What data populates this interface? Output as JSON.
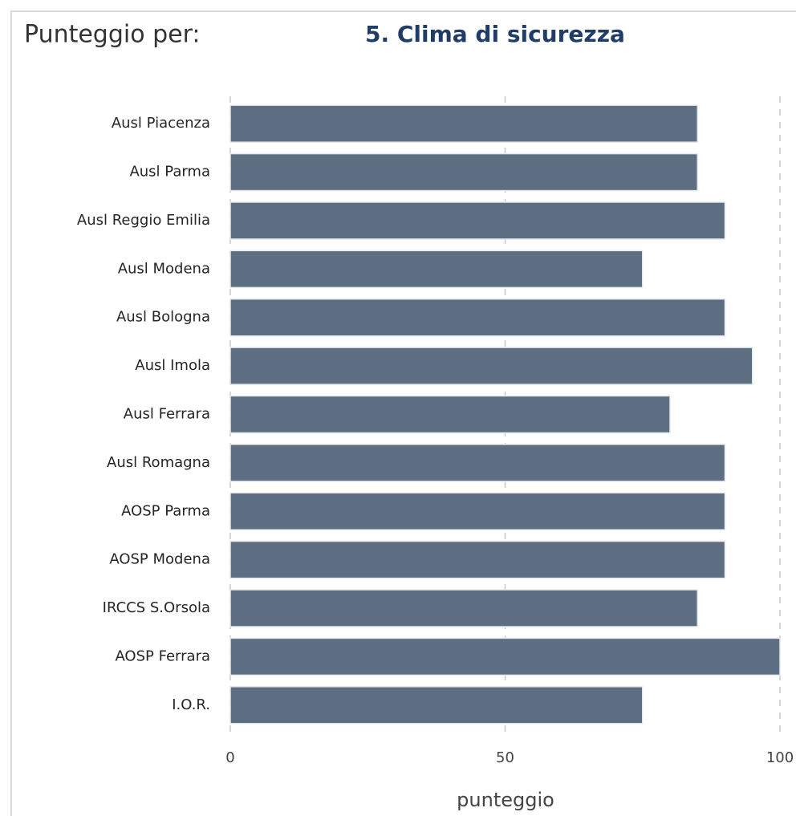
{
  "chart_data": {
    "type": "barh",
    "title_prefix": "Punteggio per:",
    "title": "5. Clima di sicurezza",
    "xlabel": "punteggio",
    "categories": [
      "Ausl Piacenza",
      "Ausl Parma",
      "Ausl Reggio Emilia",
      "Ausl Modena",
      "Ausl Bologna",
      "Ausl Imola",
      "Ausl Ferrara",
      "Ausl Romagna",
      "AOSP Parma",
      "AOSP Modena",
      "IRCCS S.Orsola",
      "AOSP Ferrara",
      "I.O.R."
    ],
    "values": [
      85,
      85,
      90,
      75,
      90,
      95,
      80,
      90,
      90,
      90,
      85,
      100,
      75
    ],
    "color": "#5d6e82",
    "xlim": [
      0,
      100
    ],
    "xticks": [
      0,
      50,
      100
    ],
    "grid": true
  }
}
